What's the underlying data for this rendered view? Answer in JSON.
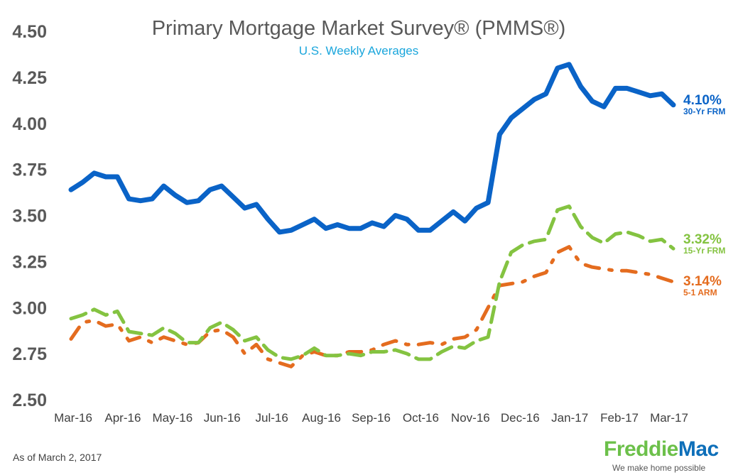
{
  "chart_data": {
    "type": "line",
    "title": "Primary Mortgage Market Survey® (PMMS®)",
    "subtitle": "U.S. Weekly Averages",
    "x_ticks": [
      "Mar-16",
      "Apr-16",
      "May-16",
      "Jun-16",
      "Jul-16",
      "Aug-16",
      "Sep-16",
      "Oct-16",
      "Nov-16",
      "Dec-16",
      "Jan-17",
      "Feb-17",
      "Mar-17"
    ],
    "y_ticks": [
      "2.50",
      "2.75",
      "3.00",
      "3.25",
      "3.50",
      "3.75",
      "4.00",
      "4.25",
      "4.50"
    ],
    "ylim": [
      2.5,
      4.5
    ],
    "grid": false,
    "series": [
      {
        "name": "30-Yr FRM",
        "label": "4.10%",
        "color": "#0a63c7",
        "style": "solid",
        "values": [
          3.64,
          3.68,
          3.73,
          3.71,
          3.71,
          3.59,
          3.58,
          3.59,
          3.66,
          3.61,
          3.57,
          3.58,
          3.64,
          3.66,
          3.6,
          3.54,
          3.56,
          3.48,
          3.41,
          3.42,
          3.45,
          3.48,
          3.43,
          3.45,
          3.43,
          3.43,
          3.46,
          3.44,
          3.5,
          3.48,
          3.42,
          3.42,
          3.47,
          3.52,
          3.47,
          3.54,
          3.57,
          3.94,
          4.03,
          4.08,
          4.13,
          4.16,
          4.3,
          4.32,
          4.2,
          4.12,
          4.09,
          4.19,
          4.19,
          4.17,
          4.15,
          4.16,
          4.1
        ]
      },
      {
        "name": "15-Yr FRM",
        "label": "3.32%",
        "color": "#84c341",
        "style": "dashed",
        "values": [
          2.94,
          2.96,
          2.99,
          2.96,
          2.98,
          2.87,
          2.86,
          2.85,
          2.89,
          2.86,
          2.81,
          2.81,
          2.89,
          2.92,
          2.88,
          2.82,
          2.84,
          2.77,
          2.73,
          2.72,
          2.74,
          2.78,
          2.74,
          2.74,
          2.75,
          2.74,
          2.76,
          2.76,
          2.77,
          2.75,
          2.72,
          2.72,
          2.76,
          2.79,
          2.78,
          2.82,
          2.84,
          3.14,
          3.3,
          3.34,
          3.36,
          3.37,
          3.53,
          3.55,
          3.44,
          3.38,
          3.35,
          3.4,
          3.41,
          3.39,
          3.36,
          3.37,
          3.32
        ]
      },
      {
        "name": "5-1 ARM",
        "label": "3.14%",
        "color": "#e46c1f",
        "style": "dashdot",
        "values": [
          2.83,
          2.92,
          2.93,
          2.9,
          2.91,
          2.82,
          2.84,
          2.81,
          2.84,
          2.82,
          2.8,
          2.81,
          2.87,
          2.88,
          2.84,
          2.75,
          2.8,
          2.72,
          2.7,
          2.68,
          2.74,
          2.76,
          2.74,
          2.74,
          2.76,
          2.76,
          2.77,
          2.8,
          2.82,
          2.8,
          2.8,
          2.81,
          2.8,
          2.83,
          2.84,
          2.88,
          3.0,
          3.12,
          3.13,
          3.14,
          3.17,
          3.19,
          3.3,
          3.33,
          3.24,
          3.22,
          3.21,
          3.2,
          3.2,
          3.19,
          3.18,
          3.16,
          3.14
        ]
      }
    ]
  },
  "footnote": "As of March 2, 2017",
  "logo": {
    "word_part1": "Freddie",
    "word_part2": "Mac",
    "tagline": "We make home possible"
  }
}
